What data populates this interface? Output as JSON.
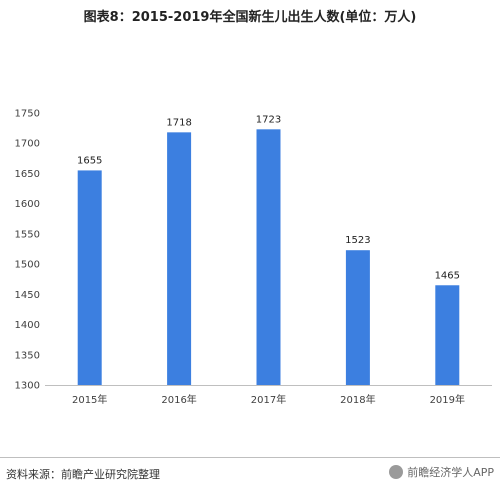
{
  "chart_data": {
    "type": "bar",
    "title": "图表8：2015-2019年全国新生儿出生人数(单位：万人)",
    "categories": [
      "2015年",
      "2016年",
      "2017年",
      "2018年",
      "2019年"
    ],
    "values": [
      1655,
      1718,
      1723,
      1523,
      1465
    ],
    "ylim": [
      1300,
      1750
    ],
    "yticks": [
      1300,
      1350,
      1400,
      1450,
      1500,
      1550,
      1600,
      1650,
      1700,
      1750
    ],
    "grid": false,
    "legend": "none",
    "bar_color": "#3c7fe0"
  },
  "footer": {
    "source": "资料来源：前瞻产业研究院整理",
    "badge": "前瞻经济学人APP"
  }
}
